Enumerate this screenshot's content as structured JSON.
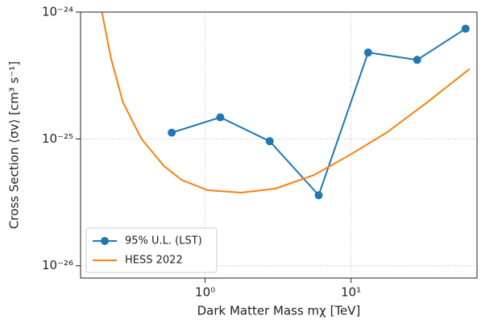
{
  "chart_data": {
    "type": "line",
    "xlabel": "Dark Matter Mass mχ [TeV]",
    "ylabel": "Cross Section ⟨σv⟩ [cm³ s⁻¹]",
    "xscale": "log",
    "yscale": "log",
    "xlim": [
      0.14,
      73
    ],
    "ylim": [
      8e-27,
      1e-24
    ],
    "xticks": [
      {
        "value": 1,
        "label": "10⁰"
      },
      {
        "value": 10,
        "label": "10¹"
      }
    ],
    "yticks": [
      {
        "value": 1e-26,
        "label": "10⁻²⁶"
      },
      {
        "value": 1e-25,
        "label": "10⁻²⁵"
      },
      {
        "value": 1e-24,
        "label": "10⁻²⁴"
      }
    ],
    "grid": true,
    "legend": "lower left",
    "series": [
      {
        "name": "95% U.L. (LST)",
        "color": "#1f77b4",
        "marker": true,
        "x": [
          0.59,
          1.27,
          2.77,
          6.0,
          13.1,
          28.4,
          61
        ],
        "values": [
          1.12e-25,
          1.48e-25,
          9.6e-26,
          3.6e-26,
          4.8e-25,
          4.2e-25,
          7.4e-25
        ]
      },
      {
        "name": "HESS 2022",
        "color": "#ff7f0e",
        "marker": false,
        "x": [
          0.196,
          0.226,
          0.273,
          0.366,
          0.523,
          0.69,
          1.04,
          1.77,
          3.03,
          5.57,
          10,
          17.5,
          33,
          64.9
        ],
        "values": [
          1e-24,
          4.35e-25,
          1.95e-25,
          1e-25,
          6.1e-26,
          4.75e-26,
          3.94e-26,
          3.77e-26,
          4.06e-26,
          5.19e-26,
          7.58e-26,
          1.12e-25,
          1.93e-25,
          3.56e-25
        ]
      }
    ]
  }
}
